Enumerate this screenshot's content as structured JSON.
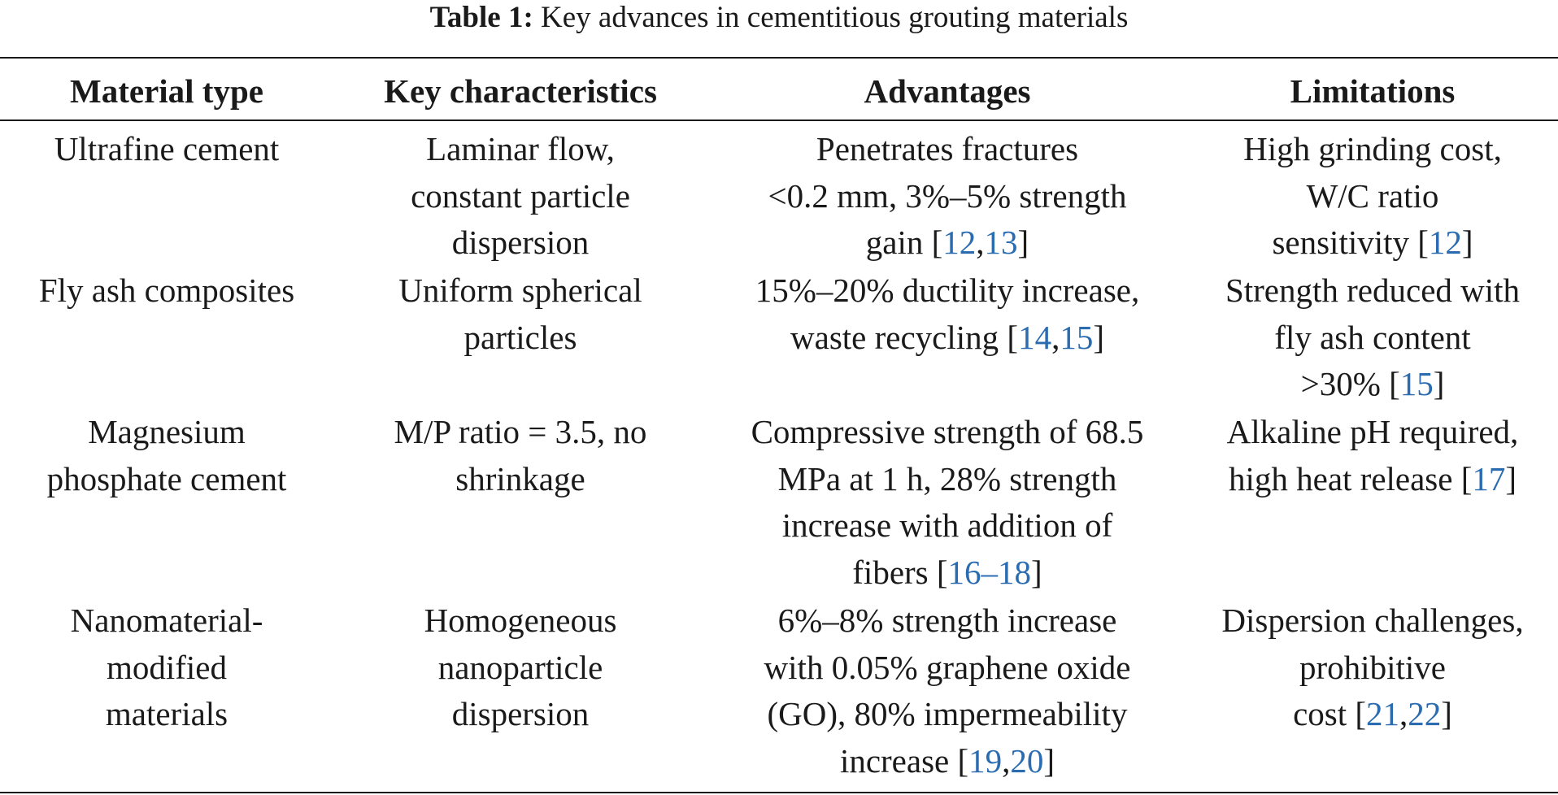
{
  "caption": {
    "label": "Table 1:",
    "text": " Key advances in cementitious grouting materials"
  },
  "table": {
    "headers": [
      "Material type",
      "Key characteristics",
      "Advantages",
      "Limitations"
    ],
    "rows": [
      {
        "material": [
          "Ultrafine cement"
        ],
        "characteristics": [
          "Laminar flow,",
          "constant particle",
          "dispersion"
        ],
        "advantages": [
          "Penetrates fractures",
          "<0.2 mm, 3%–5% strength"
        ],
        "advantages_last": "gain [",
        "advantages_refs": [
          "12",
          ",",
          "13"
        ],
        "advantages_close": "]",
        "limitations": [
          "High grinding cost,",
          "W/C ratio"
        ],
        "limitations_last": "sensitivity [",
        "limitations_refs": [
          "12"
        ],
        "limitations_close": "]"
      },
      {
        "material": [
          "Fly ash composites"
        ],
        "characteristics": [
          "Uniform spherical",
          "particles"
        ],
        "advantages": [
          "15%–20% ductility increase,"
        ],
        "advantages_last": "waste recycling [",
        "advantages_refs": [
          "14",
          ",",
          "15"
        ],
        "advantages_close": "]",
        "limitations": [
          "Strength reduced with",
          "fly ash content"
        ],
        "limitations_last": ">30% [",
        "limitations_refs": [
          "15"
        ],
        "limitations_close": "]"
      },
      {
        "material": [
          "Magnesium",
          "phosphate cement"
        ],
        "characteristics": [
          "M/P ratio = 3.5, no",
          "shrinkage"
        ],
        "advantages": [
          "Compressive strength of 68.5",
          "MPa at 1 h, 28% strength",
          "increase with addition of"
        ],
        "advantages_last": "fibers [",
        "advantages_refs": [
          "16–18"
        ],
        "advantages_close": "]",
        "limitations": [
          "Alkaline pH required,"
        ],
        "limitations_last": "high heat release [",
        "limitations_refs": [
          "17"
        ],
        "limitations_close": "]"
      },
      {
        "material": [
          "Nanomaterial-",
          "modified",
          "materials"
        ],
        "characteristics": [
          "Homogeneous",
          "nanoparticle",
          "dispersion"
        ],
        "advantages": [
          "6%–8% strength increase",
          "with 0.05% graphene oxide",
          "(GO), 80% impermeability"
        ],
        "advantages_last": "increase [",
        "advantages_refs": [
          "19",
          ",",
          "20"
        ],
        "advantages_close": "]",
        "limitations": [
          "Dispersion challenges,",
          "prohibitive"
        ],
        "limitations_last": "cost [",
        "limitations_refs": [
          "21",
          ",",
          "22"
        ],
        "limitations_close": "]"
      }
    ]
  }
}
